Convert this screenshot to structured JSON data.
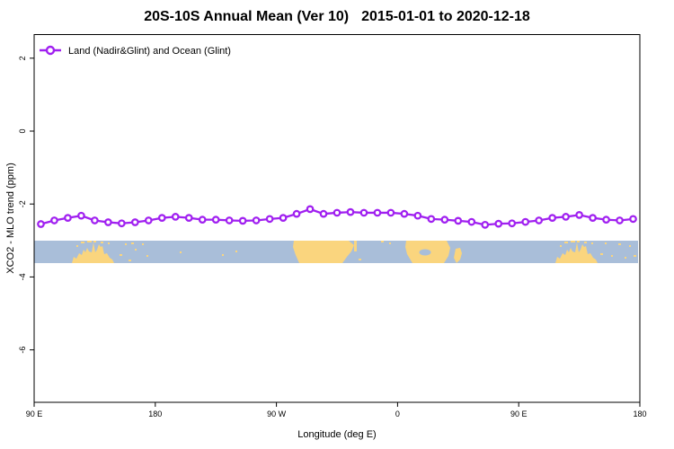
{
  "title": {
    "main": "20S-10S Annual Mean (Ver 10)",
    "dates": "2015-01-01 to 2020-12-18"
  },
  "legend": {
    "label": "Land (Nadir&Glint) and Ocean (Glint)"
  },
  "axes": {
    "x": {
      "label": "Longitude (deg E)"
    },
    "y": {
      "label": "XCO2 - MLO trend (ppm)"
    }
  },
  "colors": {
    "series": "#a020f0",
    "marker_fill": "#ffffff",
    "ocean": "#a9bed9",
    "land": "#fad57e",
    "axis": "#000000"
  },
  "chart_data": {
    "type": "line",
    "title": "20S-10S Annual Mean (Ver 10)  2015-01-01 to 2020-12-18",
    "xlabel": "Longitude (deg E)",
    "ylabel": "XCO2 - MLO trend (ppm)",
    "x_axis_wraps_globe": true,
    "x_range_deg_east": [
      90,
      540
    ],
    "ylim": [
      -7.4,
      2.6
    ],
    "ytick_values": [
      2,
      0,
      -2,
      -4,
      -6
    ],
    "ytick_labels": [
      "2",
      "0",
      "-2",
      "-4",
      "-6"
    ],
    "xtick_deg": [
      90,
      180,
      270,
      360,
      450,
      540
    ],
    "xtick_labels": [
      "90 E",
      "180",
      "90 W",
      "0",
      "90 E",
      "180"
    ],
    "grid": false,
    "legend_position": "top-left",
    "land_ocean_strip_y_range": [
      -3.0,
      -3.62
    ],
    "series": [
      {
        "name": "Land (Nadir&Glint) and Ocean (Glint)",
        "marker": "open-circle",
        "x_deg_east": [
          95,
          105,
          115,
          125,
          135,
          145,
          155,
          165,
          175,
          185,
          195,
          205,
          215,
          225,
          235,
          245,
          255,
          265,
          275,
          285,
          295,
          305,
          315,
          325,
          335,
          345,
          355,
          365,
          375,
          385,
          395,
          405,
          415,
          425,
          435,
          445,
          455,
          465,
          475,
          485,
          495,
          505,
          515,
          525,
          535
        ],
        "values": [
          -2.55,
          -2.45,
          -2.38,
          -2.32,
          -2.45,
          -2.5,
          -2.53,
          -2.5,
          -2.45,
          -2.38,
          -2.35,
          -2.38,
          -2.43,
          -2.43,
          -2.45,
          -2.46,
          -2.45,
          -2.41,
          -2.38,
          -2.27,
          -2.14,
          -2.27,
          -2.24,
          -2.22,
          -2.24,
          -2.24,
          -2.24,
          -2.27,
          -2.32,
          -2.41,
          -2.43,
          -2.46,
          -2.49,
          -2.57,
          -2.54,
          -2.53,
          -2.49,
          -2.45,
          -2.38,
          -2.35,
          -2.3,
          -2.38,
          -2.43,
          -2.45,
          -2.41
        ]
      }
    ]
  }
}
